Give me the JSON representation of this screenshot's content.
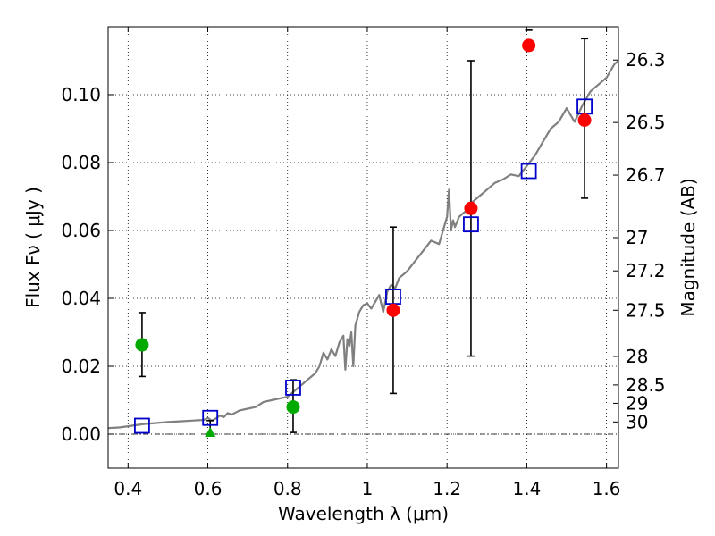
{
  "chart_data": {
    "type": "scatter",
    "xlabel": "Wavelength  λ (μm)",
    "ylabel": "Flux  Fν  ( μJy )",
    "ylabel_right": "Magnitude (AB)",
    "xlim": [
      0.35,
      1.63
    ],
    "ylim": [
      -0.01,
      0.12
    ],
    "grid": true,
    "xticks": [
      0.4,
      0.6,
      0.8,
      1.0,
      1.2,
      1.4,
      1.6
    ],
    "xtick_labels": [
      "0.4",
      "0.6",
      "0.8",
      "1",
      "1.2",
      "1.4",
      "1.6"
    ],
    "yticks": [
      0.0,
      0.02,
      0.04,
      0.06,
      0.08,
      0.1
    ],
    "ytick_labels": [
      "0.00",
      "0.02",
      "0.04",
      "0.06",
      "0.08",
      "0.10"
    ],
    "mag_ticks": [
      {
        "label": "26.3",
        "flux": 0.1102
      },
      {
        "label": "26.5",
        "flux": 0.0918
      },
      {
        "label": "26.7",
        "flux": 0.0763
      },
      {
        "label": "27",
        "flux": 0.0579
      },
      {
        "label": "27.2",
        "flux": 0.0481
      },
      {
        "label": "27.5",
        "flux": 0.0365
      },
      {
        "label": "28",
        "flux": 0.0229
      },
      {
        "label": "28.5",
        "flux": 0.0145
      },
      {
        "label": "29",
        "flux": 0.0091
      },
      {
        "label": "30",
        "flux": 0.0036
      }
    ],
    "series": [
      {
        "name": "model SED",
        "kind": "line",
        "color": "#808080",
        "x": [
          0.35,
          0.38,
          0.41,
          0.44,
          0.47,
          0.5,
          0.53,
          0.56,
          0.59,
          0.6,
          0.61,
          0.62,
          0.63,
          0.64,
          0.65,
          0.66,
          0.67,
          0.68,
          0.7,
          0.72,
          0.74,
          0.76,
          0.78,
          0.8,
          0.82,
          0.84,
          0.85,
          0.87,
          0.88,
          0.89,
          0.9,
          0.91,
          0.92,
          0.93,
          0.94,
          0.945,
          0.95,
          0.955,
          0.96,
          0.965,
          0.97,
          0.98,
          0.99,
          1.0,
          1.01,
          1.02,
          1.03,
          1.04,
          1.05,
          1.06,
          1.07,
          1.08,
          1.1,
          1.12,
          1.14,
          1.16,
          1.18,
          1.19,
          1.2,
          1.205,
          1.21,
          1.215,
          1.22,
          1.23,
          1.24,
          1.25,
          1.26,
          1.28,
          1.3,
          1.32,
          1.34,
          1.36,
          1.38,
          1.4,
          1.42,
          1.44,
          1.46,
          1.48,
          1.5,
          1.52,
          1.54,
          1.56,
          1.58,
          1.6,
          1.62,
          1.63
        ],
        "y": [
          0.0018,
          0.002,
          0.0025,
          0.003,
          0.0033,
          0.0036,
          0.0038,
          0.004,
          0.0042,
          0.0048,
          0.004,
          0.0046,
          0.0055,
          0.005,
          0.0062,
          0.0058,
          0.0064,
          0.007,
          0.0075,
          0.008,
          0.0095,
          0.01,
          0.0105,
          0.011,
          0.013,
          0.015,
          0.016,
          0.018,
          0.02,
          0.024,
          0.022,
          0.025,
          0.023,
          0.027,
          0.029,
          0.019,
          0.028,
          0.026,
          0.03,
          0.02,
          0.032,
          0.036,
          0.038,
          0.0385,
          0.037,
          0.039,
          0.041,
          0.036,
          0.042,
          0.044,
          0.043,
          0.046,
          0.048,
          0.051,
          0.054,
          0.057,
          0.056,
          0.06,
          0.064,
          0.072,
          0.06,
          0.063,
          0.061,
          0.064,
          0.065,
          0.066,
          0.068,
          0.07,
          0.072,
          0.074,
          0.075,
          0.0765,
          0.076,
          0.079,
          0.082,
          0.086,
          0.09,
          0.092,
          0.096,
          0.092,
          0.097,
          0.101,
          0.103,
          0.105,
          0.109,
          0.11
        ]
      },
      {
        "name": "model photometry",
        "kind": "square",
        "color": "#0000cc",
        "x": [
          0.435,
          0.606,
          0.814,
          1.065,
          1.26,
          1.405,
          1.545
        ],
        "y": [
          0.0025,
          0.0048,
          0.0137,
          0.0405,
          0.0618,
          0.0775,
          0.0965
        ]
      },
      {
        "name": "observed (red)",
        "kind": "circle",
        "color": "#ff0000",
        "x": [
          1.065,
          1.26,
          1.405,
          1.545
        ],
        "y": [
          0.0365,
          0.0665,
          0.1145,
          0.0925
        ],
        "err_low": [
          0.012,
          0.023,
          0.119,
          0.0695
        ],
        "err_high": [
          0.061,
          0.11,
          0.119,
          0.1165
        ]
      },
      {
        "name": "observed (green)",
        "kind": "circle",
        "color": "#00aa00",
        "x": [
          0.435,
          0.814
        ],
        "y": [
          0.0263,
          0.008
        ],
        "err_low": [
          0.017,
          0.0005
        ],
        "err_high": [
          0.0358,
          0.016
        ]
      },
      {
        "name": "upper limit",
        "kind": "triangle",
        "color": "#00aa00",
        "x": [
          0.606
        ],
        "y": [
          0.0
        ],
        "err_low": [
          0.0
        ],
        "err_high": [
          0.004
        ]
      }
    ]
  }
}
